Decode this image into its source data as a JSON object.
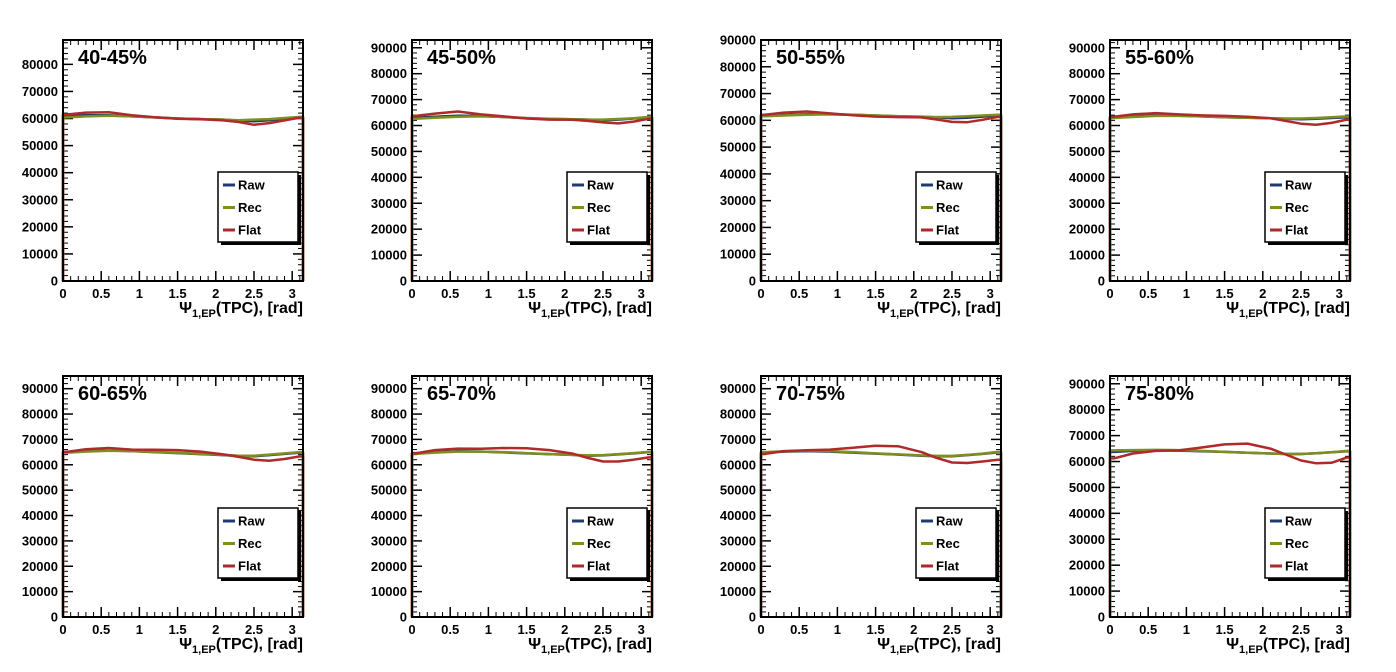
{
  "chart_data": [
    {
      "type": "line",
      "title": "40-45%",
      "xlabel_base": "Ψ",
      "xlabel_sub": "1,EP",
      "xlabel_rest": "(TPC), [rad]",
      "xlim": [
        0,
        3.1416
      ],
      "ylim": [
        0,
        89000
      ],
      "yticks": [
        0,
        10000,
        20000,
        30000,
        40000,
        50000,
        60000,
        70000,
        80000
      ],
      "xticks": [
        0,
        0.5,
        1,
        1.5,
        2,
        2.5,
        3
      ],
      "xtick_labels": [
        "0",
        "0.5",
        "1",
        "1.5",
        "2",
        "2.5",
        "3"
      ],
      "x": [
        0.05,
        0.3,
        0.6,
        0.9,
        1.2,
        1.5,
        1.8,
        2.1,
        2.3,
        2.5,
        2.7,
        2.9,
        3.1
      ],
      "series": [
        {
          "name": "Raw",
          "color": "#1f3a6e",
          "values": [
            61000,
            61200,
            61200,
            60800,
            60400,
            60000,
            59800,
            59600,
            59200,
            59000,
            59400,
            60000,
            60400
          ]
        },
        {
          "name": "Rec",
          "color": "#7f8f1f",
          "values": [
            60400,
            60800,
            61000,
            60800,
            60400,
            60000,
            59800,
            59600,
            59400,
            59600,
            59800,
            60200,
            60600
          ]
        },
        {
          "name": "Flat",
          "color": "#b02a2a",
          "values": [
            61500,
            62200,
            62300,
            61200,
            60500,
            59900,
            59700,
            59300,
            58700,
            57700,
            58300,
            59300,
            60300
          ]
        }
      ],
      "legend": [
        "Raw",
        "Rec",
        "Flat"
      ]
    },
    {
      "type": "line",
      "title": "45-50%",
      "xlabel_base": "Ψ",
      "xlabel_sub": "1,EP",
      "xlabel_rest": "(TPC), [rad]",
      "xlim": [
        0,
        3.1416
      ],
      "ylim": [
        0,
        93000
      ],
      "yticks": [
        0,
        10000,
        20000,
        30000,
        40000,
        50000,
        60000,
        70000,
        80000,
        90000
      ],
      "xticks": [
        0,
        0.5,
        1,
        1.5,
        2,
        2.5,
        3
      ],
      "xtick_labels": [
        "0",
        "0.5",
        "1",
        "1.5",
        "2",
        "2.5",
        "3"
      ],
      "x": [
        0.05,
        0.3,
        0.6,
        0.9,
        1.2,
        1.5,
        1.8,
        2.1,
        2.3,
        2.5,
        2.7,
        2.9,
        3.1
      ],
      "series": [
        {
          "name": "Raw",
          "color": "#1f3a6e",
          "values": [
            63000,
            63400,
            63800,
            63700,
            63300,
            62800,
            62500,
            62400,
            62300,
            62000,
            62300,
            62700,
            63200
          ]
        },
        {
          "name": "Rec",
          "color": "#7f8f1f",
          "values": [
            62600,
            63000,
            63400,
            63500,
            63300,
            62900,
            62600,
            62400,
            62300,
            62300,
            62500,
            62800,
            63300
          ]
        },
        {
          "name": "Flat",
          "color": "#b02a2a",
          "values": [
            63700,
            64600,
            65400,
            64300,
            63500,
            62700,
            62300,
            62200,
            61800,
            61200,
            60800,
            61500,
            62600
          ]
        }
      ],
      "legend": [
        "Raw",
        "Rec",
        "Flat"
      ]
    },
    {
      "type": "line",
      "title": "50-55%",
      "xlabel_base": "Ψ",
      "xlabel_sub": "1,EP",
      "xlabel_rest": "(TPC), [rad]",
      "xlim": [
        0,
        3.1416
      ],
      "ylim": [
        0,
        90000
      ],
      "yticks": [
        0,
        10000,
        20000,
        30000,
        40000,
        50000,
        60000,
        70000,
        80000,
        90000
      ],
      "xticks": [
        0,
        0.5,
        1,
        1.5,
        2,
        2.5,
        3
      ],
      "xtick_labels": [
        "0",
        "0.5",
        "1",
        "1.5",
        "2",
        "2.5",
        "3"
      ],
      "x": [
        0.05,
        0.3,
        0.6,
        0.9,
        1.2,
        1.5,
        1.8,
        2.1,
        2.3,
        2.5,
        2.7,
        2.9,
        3.1
      ],
      "series": [
        {
          "name": "Raw",
          "color": "#1f3a6e",
          "values": [
            61800,
            62000,
            62300,
            62300,
            62100,
            61800,
            61500,
            61300,
            61100,
            60800,
            61000,
            61400,
            61800
          ]
        },
        {
          "name": "Rec",
          "color": "#7f8f1f",
          "values": [
            61500,
            61800,
            62100,
            62200,
            62100,
            61800,
            61500,
            61400,
            61200,
            61300,
            61500,
            61800,
            62100
          ]
        },
        {
          "name": "Flat",
          "color": "#b02a2a",
          "values": [
            62100,
            62900,
            63300,
            62600,
            61900,
            61400,
            61200,
            61100,
            60300,
            59400,
            59300,
            60200,
            61300
          ]
        }
      ],
      "legend": [
        "Raw",
        "Rec",
        "Flat"
      ]
    },
    {
      "type": "line",
      "title": "55-60%",
      "xlabel_base": "Ψ",
      "xlabel_sub": "1,EP",
      "xlabel_rest": "(TPC), [rad]",
      "xlim": [
        0,
        3.1416
      ],
      "ylim": [
        0,
        93000
      ],
      "yticks": [
        0,
        10000,
        20000,
        30000,
        40000,
        50000,
        60000,
        70000,
        80000,
        90000
      ],
      "xticks": [
        0,
        0.5,
        1,
        1.5,
        2,
        2.5,
        3
      ],
      "xtick_labels": [
        "0",
        "0.5",
        "1",
        "1.5",
        "2",
        "2.5",
        "3"
      ],
      "x": [
        0.05,
        0.3,
        0.6,
        0.9,
        1.2,
        1.5,
        1.8,
        2.1,
        2.3,
        2.5,
        2.7,
        2.9,
        3.1
      ],
      "series": [
        {
          "name": "Raw",
          "color": "#1f3a6e",
          "values": [
            63200,
            63600,
            63900,
            63800,
            63500,
            63200,
            63000,
            62800,
            62600,
            62400,
            62600,
            62900,
            63200
          ]
        },
        {
          "name": "Rec",
          "color": "#7f8f1f",
          "values": [
            62900,
            63300,
            63700,
            63700,
            63500,
            63200,
            63000,
            62800,
            62700,
            62700,
            62900,
            63200,
            63500
          ]
        },
        {
          "name": "Flat",
          "color": "#b02a2a",
          "values": [
            63400,
            64300,
            64800,
            64300,
            63900,
            63700,
            63400,
            62800,
            61800,
            60700,
            60300,
            61000,
            62300
          ]
        }
      ],
      "legend": [
        "Raw",
        "Rec",
        "Flat"
      ]
    },
    {
      "type": "line",
      "title": "60-65%",
      "xlabel_base": "Ψ",
      "xlabel_sub": "1,EP",
      "xlabel_rest": "(TPC), [rad]",
      "xlim": [
        0,
        3.1416
      ],
      "ylim": [
        0,
        95000
      ],
      "yticks": [
        0,
        10000,
        20000,
        30000,
        40000,
        50000,
        60000,
        70000,
        80000,
        90000
      ],
      "xticks": [
        0,
        0.5,
        1,
        1.5,
        2,
        2.5,
        3
      ],
      "xtick_labels": [
        "0",
        "0.5",
        "1",
        "1.5",
        "2",
        "2.5",
        "3"
      ],
      "x": [
        0.05,
        0.3,
        0.6,
        0.9,
        1.2,
        1.5,
        1.8,
        2.1,
        2.3,
        2.5,
        2.7,
        2.9,
        3.1
      ],
      "series": [
        {
          "name": "Raw",
          "color": "#1f3a6e",
          "values": [
            65000,
            65400,
            65600,
            65400,
            65000,
            64600,
            64200,
            63800,
            63500,
            63400,
            63800,
            64300,
            64800
          ]
        },
        {
          "name": "Rec",
          "color": "#7f8f1f",
          "values": [
            64800,
            65200,
            65500,
            65400,
            65100,
            64700,
            64300,
            63900,
            63600,
            63600,
            64000,
            64500,
            65000
          ]
        },
        {
          "name": "Flat",
          "color": "#b02a2a",
          "values": [
            65100,
            66100,
            66600,
            66000,
            65900,
            65800,
            65200,
            64100,
            63100,
            62000,
            61600,
            62300,
            63300
          ]
        }
      ],
      "legend": [
        "Raw",
        "Rec",
        "Flat"
      ]
    },
    {
      "type": "line",
      "title": "65-70%",
      "xlabel_base": "Ψ",
      "xlabel_sub": "1,EP",
      "xlabel_rest": "(TPC), [rad]",
      "xlim": [
        0,
        3.1416
      ],
      "ylim": [
        0,
        95000
      ],
      "yticks": [
        0,
        10000,
        20000,
        30000,
        40000,
        50000,
        60000,
        70000,
        80000,
        90000
      ],
      "xticks": [
        0,
        0.5,
        1,
        1.5,
        2,
        2.5,
        3
      ],
      "xtick_labels": [
        "0",
        "0.5",
        "1",
        "1.5",
        "2",
        "2.5",
        "3"
      ],
      "x": [
        0.05,
        0.3,
        0.6,
        0.9,
        1.2,
        1.5,
        1.8,
        2.1,
        2.3,
        2.5,
        2.7,
        2.9,
        3.1
      ],
      "series": [
        {
          "name": "Raw",
          "color": "#1f3a6e",
          "values": [
            64600,
            65000,
            65300,
            65200,
            64900,
            64500,
            64200,
            63900,
            63600,
            63700,
            64100,
            64500,
            65000
          ]
        },
        {
          "name": "Rec",
          "color": "#7f8f1f",
          "values": [
            64300,
            64800,
            65200,
            65200,
            65000,
            64600,
            64200,
            63900,
            63700,
            63800,
            64200,
            64600,
            65100
          ]
        },
        {
          "name": "Flat",
          "color": "#b02a2a",
          "values": [
            64500,
            65800,
            66400,
            66300,
            66600,
            66500,
            65800,
            64400,
            62700,
            61300,
            61300,
            62000,
            62900
          ]
        }
      ],
      "legend": [
        "Raw",
        "Rec",
        "Flat"
      ]
    },
    {
      "type": "line",
      "title": "70-75%",
      "xlabel_base": "Ψ",
      "xlabel_sub": "1,EP",
      "xlabel_rest": "(TPC), [rad]",
      "xlim": [
        0,
        3.1416
      ],
      "ylim": [
        0,
        95000
      ],
      "yticks": [
        0,
        10000,
        20000,
        30000,
        40000,
        50000,
        60000,
        70000,
        80000,
        90000
      ],
      "xticks": [
        0,
        0.5,
        1,
        1.5,
        2,
        2.5,
        3
      ],
      "xtick_labels": [
        "0",
        "0.5",
        "1",
        "1.5",
        "2",
        "2.5",
        "3"
      ],
      "x": [
        0.05,
        0.3,
        0.6,
        0.9,
        1.2,
        1.5,
        1.8,
        2.1,
        2.3,
        2.5,
        2.7,
        2.9,
        3.1
      ],
      "series": [
        {
          "name": "Raw",
          "color": "#1f3a6e",
          "values": [
            64800,
            65200,
            65400,
            65200,
            64800,
            64400,
            64000,
            63600,
            63400,
            63400,
            63800,
            64300,
            64900
          ]
        },
        {
          "name": "Rec",
          "color": "#7f8f1f",
          "values": [
            65000,
            65300,
            65500,
            65400,
            65000,
            64500,
            64100,
            63700,
            63500,
            63500,
            63900,
            64400,
            65100
          ]
        },
        {
          "name": "Flat",
          "color": "#b02a2a",
          "values": [
            64300,
            65400,
            65700,
            66000,
            66700,
            67500,
            67300,
            65000,
            62700,
            60900,
            60700,
            61300,
            62000
          ]
        }
      ],
      "legend": [
        "Raw",
        "Rec",
        "Flat"
      ]
    },
    {
      "type": "line",
      "title": "75-80%",
      "xlabel_base": "Ψ",
      "xlabel_sub": "1,EP",
      "xlabel_rest": "(TPC), [rad]",
      "xlim": [
        0,
        3.1416
      ],
      "ylim": [
        0,
        93000
      ],
      "yticks": [
        0,
        10000,
        20000,
        30000,
        40000,
        50000,
        60000,
        70000,
        80000,
        90000
      ],
      "xticks": [
        0,
        0.5,
        1,
        1.5,
        2,
        2.5,
        3
      ],
      "xtick_labels": [
        "0",
        "0.5",
        "1",
        "1.5",
        "2",
        "2.5",
        "3"
      ],
      "x": [
        0.05,
        0.3,
        0.6,
        0.9,
        1.2,
        1.5,
        1.8,
        2.1,
        2.3,
        2.5,
        2.7,
        2.9,
        3.1
      ],
      "series": [
        {
          "name": "Raw",
          "color": "#1f3a6e",
          "values": [
            63700,
            64100,
            64300,
            64200,
            64000,
            63700,
            63400,
            63100,
            62900,
            62900,
            63200,
            63600,
            64000
          ]
        },
        {
          "name": "Rec",
          "color": "#7f8f1f",
          "values": [
            64300,
            64400,
            64500,
            64400,
            64100,
            63700,
            63400,
            63100,
            62900,
            62900,
            63200,
            63600,
            64100
          ]
        },
        {
          "name": "Flat",
          "color": "#b02a2a",
          "values": [
            61200,
            63100,
            64100,
            64300,
            65400,
            66600,
            66900,
            65000,
            62700,
            60400,
            59300,
            59500,
            61500
          ]
        }
      ],
      "legend": [
        "Raw",
        "Rec",
        "Flat"
      ]
    }
  ]
}
